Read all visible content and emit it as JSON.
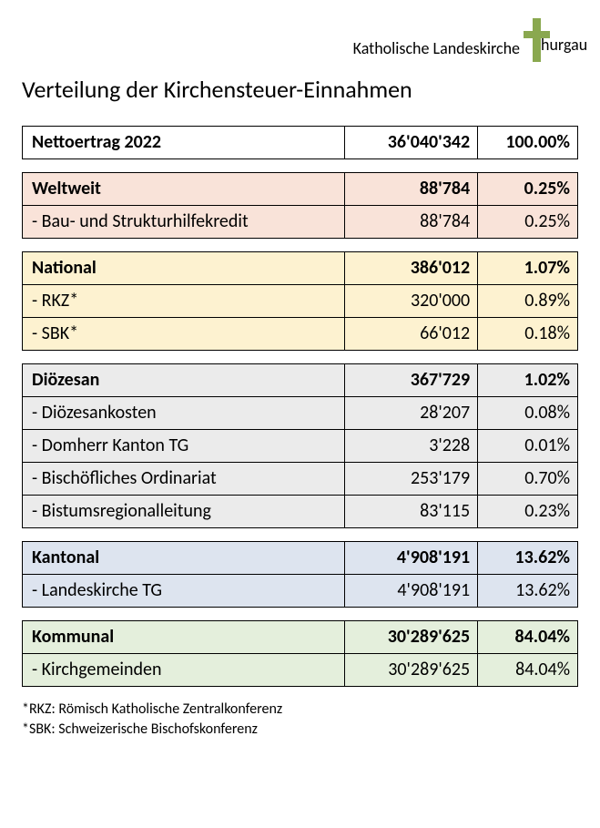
{
  "brand": {
    "text_left": "Katholische Landeskirche",
    "text_suffix": "hurgau",
    "cross_color": "#8aa84f"
  },
  "title": "Verteilung der Kirchensteuer-Einnahmen",
  "colors": {
    "netto": "#ffffff",
    "weltweit": "#f9e3d9",
    "national": "#fdf2d0",
    "dioezesan": "#ebebeb",
    "kantonal": "#dde4ef",
    "kommunal": "#e4efdc",
    "border": "#000000",
    "text": "#000000"
  },
  "font": {
    "title_size_pt": 20,
    "cell_size_pt": 15,
    "footnote_size_pt": 12,
    "family": "Gill Sans"
  },
  "netto": {
    "label": "Nettoertrag 2022",
    "amount": "36'040'342",
    "pct": "100.00%"
  },
  "sections": {
    "weltweit": {
      "label": "Weltweit",
      "amount": "88'784",
      "pct": "0.25%",
      "rows": [
        {
          "label": "Bau- und Strukturhilfekredit",
          "amount": "88'784",
          "pct": "0.25%"
        }
      ]
    },
    "national": {
      "label": "National",
      "amount": "386'012",
      "pct": "1.07%",
      "rows": [
        {
          "label": "RKZ*",
          "amount": "320'000",
          "pct": "0.89%"
        },
        {
          "label": "SBK*",
          "amount": "66'012",
          "pct": "0.18%"
        }
      ]
    },
    "dioezesan": {
      "label": "Diözesan",
      "amount": "367'729",
      "pct": "1.02%",
      "rows": [
        {
          "label": "Diözesankosten",
          "amount": "28'207",
          "pct": "0.08%"
        },
        {
          "label": "Domherr Kanton TG",
          "amount": "3'228",
          "pct": "0.01%"
        },
        {
          "label": "Bischöfliches Ordinariat",
          "amount": "253'179",
          "pct": "0.70%"
        },
        {
          "label": "Bistumsregionalleitung",
          "amount": "83'115",
          "pct": "0.23%"
        }
      ]
    },
    "kantonal": {
      "label": "Kantonal",
      "amount": "4'908'191",
      "pct": "13.62%",
      "rows": [
        {
          "label": "Landeskirche TG",
          "amount": "4'908'191",
          "pct": "13.62%"
        }
      ]
    },
    "kommunal": {
      "label": "Kommunal",
      "amount": "30'289'625",
      "pct": "84.04%",
      "rows": [
        {
          "label": "Kirchgemeinden",
          "amount": "30'289'625",
          "pct": "84.04%"
        }
      ]
    }
  },
  "footnotes": [
    "*RKZ: Römisch Katholische Zentralkonferenz",
    "*SBK: Schweizerische Bischofskonferenz"
  ]
}
